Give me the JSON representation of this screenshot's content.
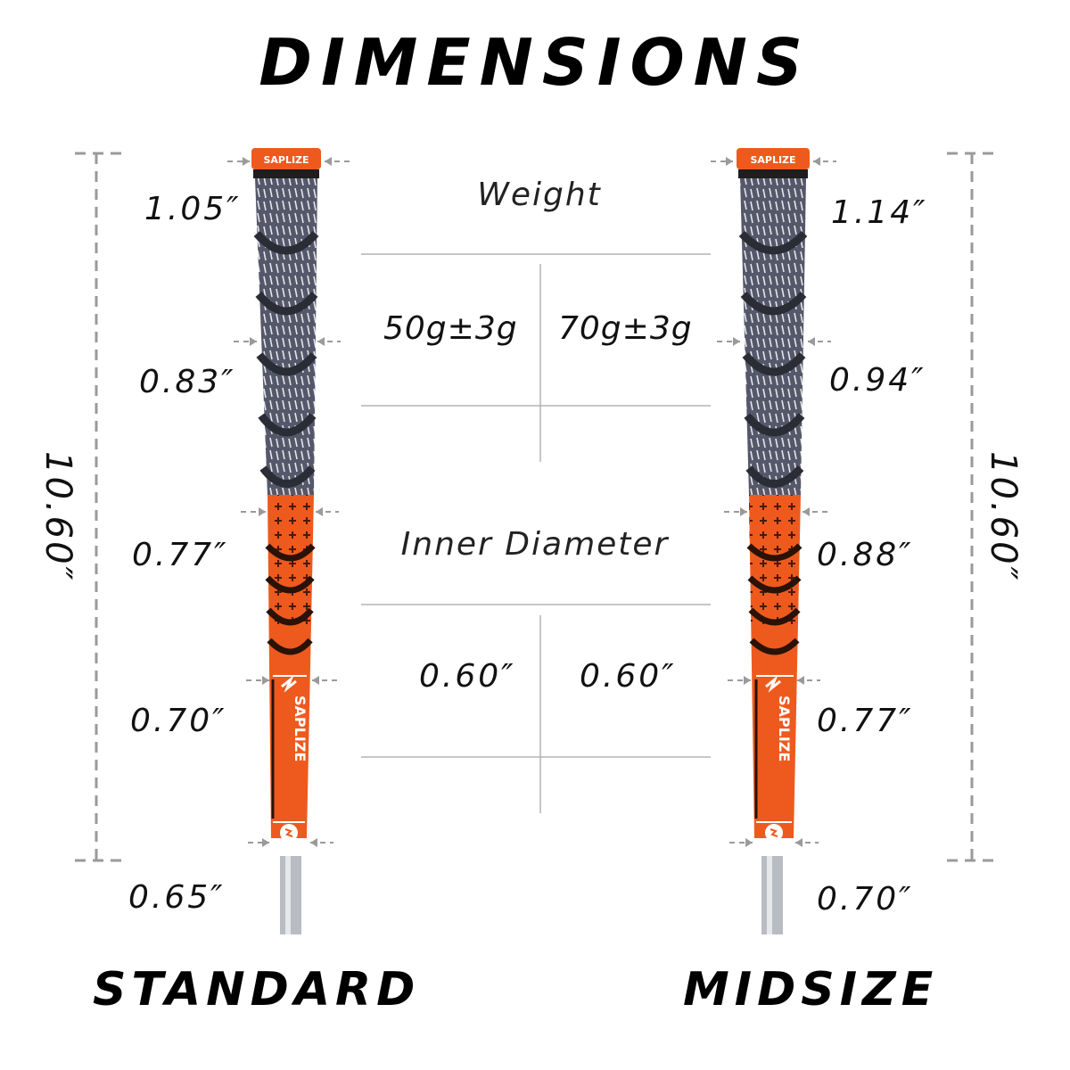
{
  "title": "DIMENSIONS",
  "standard": {
    "label": "STANDARD",
    "length": "10.60″",
    "diameters": [
      "1.05″",
      "0.83″",
      "0.77″",
      "0.70″",
      "0.65″"
    ],
    "brand": "SAPLIZE"
  },
  "midsize": {
    "label": "MIDSIZE",
    "length": "10.60″",
    "diameters": [
      "1.14″",
      "0.94″",
      "0.88″",
      "0.77″",
      "0.70″"
    ],
    "brand": "SAPLIZE"
  },
  "specs": {
    "weight_heading": "Weight",
    "weight_standard": "50g±3g",
    "weight_midsize": "70g±3g",
    "inner_heading": "Inner Diameter",
    "inner_standard": "0.60″",
    "inner_midsize": "0.60″"
  },
  "colors": {
    "orange": "#ee5a1e",
    "grip_gray": "#5c5f6e",
    "dark": "#1e1e1e",
    "shaft": "#b9bcc2",
    "guide_line": "#9a9a9a"
  }
}
